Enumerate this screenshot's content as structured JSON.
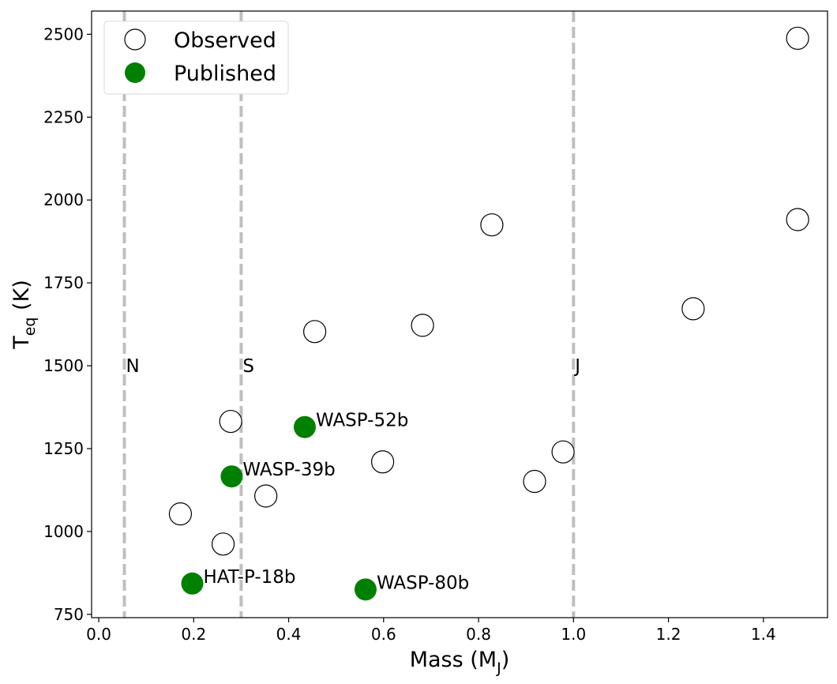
{
  "chart_data": {
    "type": "scatter",
    "xlabel": {
      "main": "Mass (M",
      "sub": "J",
      "end": ")"
    },
    "ylabel": {
      "main": "T",
      "sub": "eq",
      "end": " (K)"
    },
    "xlim": [
      -0.015,
      1.535
    ],
    "ylim": [
      740,
      2570
    ],
    "xticks": [
      0.0,
      0.2,
      0.4,
      0.6,
      0.8,
      1.0,
      1.2,
      1.4
    ],
    "xtick_labels": [
      "0.0",
      "0.2",
      "0.4",
      "0.6",
      "0.8",
      "1.0",
      "1.2",
      "1.4"
    ],
    "yticks": [
      750,
      1000,
      1250,
      1500,
      1750,
      2000,
      2250,
      2500
    ],
    "ytick_labels": [
      "750",
      "1000",
      "1250",
      "1500",
      "1750",
      "2000",
      "2250",
      "2500"
    ],
    "grid": false,
    "legend_position": "top-left",
    "colors": {
      "published": "#008000",
      "reference_line": "#bfbfbf"
    },
    "reference_lines": [
      {
        "x": 0.054,
        "label": "N",
        "label_y": 1500
      },
      {
        "x": 0.3,
        "label": "S",
        "label_y": 1500
      },
      {
        "x": 1.0,
        "label": "J",
        "label_y": 1500
      }
    ],
    "series": [
      {
        "name": "Observed",
        "style": "open-circle",
        "points": [
          {
            "x": 0.172,
            "y": 1053
          },
          {
            "x": 0.262,
            "y": 962
          },
          {
            "x": 0.278,
            "y": 1332
          },
          {
            "x": 0.352,
            "y": 1107
          },
          {
            "x": 0.455,
            "y": 1603
          },
          {
            "x": 0.598,
            "y": 1210
          },
          {
            "x": 0.682,
            "y": 1622
          },
          {
            "x": 0.828,
            "y": 1925
          },
          {
            "x": 0.918,
            "y": 1151
          },
          {
            "x": 0.978,
            "y": 1240
          },
          {
            "x": 1.252,
            "y": 1672
          },
          {
            "x": 1.472,
            "y": 1941
          },
          {
            "x": 1.472,
            "y": 2488
          }
        ]
      },
      {
        "name": "Published",
        "style": "filled-circle",
        "points": [
          {
            "x": 0.197,
            "y": 843,
            "label": "HAT-P-18b"
          },
          {
            "x": 0.28,
            "y": 1166,
            "label": "WASP-39b"
          },
          {
            "x": 0.434,
            "y": 1315,
            "label": "WASP-52b"
          },
          {
            "x": 0.562,
            "y": 825,
            "label": "WASP-80b"
          }
        ]
      }
    ]
  }
}
